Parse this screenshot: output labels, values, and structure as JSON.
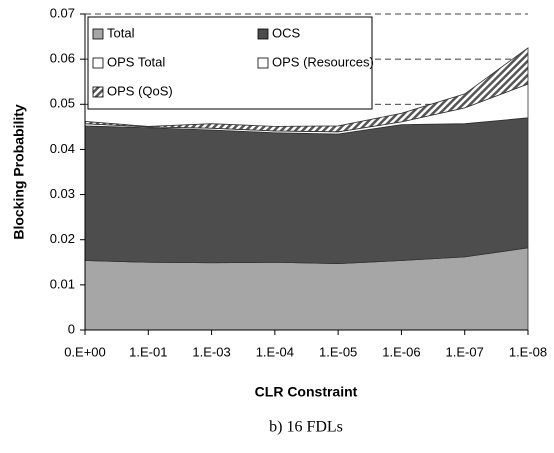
{
  "chart_data": {
    "type": "stacked_area",
    "y_label": "Blocking Probability",
    "x_label": "CLR Constraint",
    "caption": "b) 16 FDLs",
    "categories": [
      "0.E+00",
      "1.E-01",
      "1.E-03",
      "1.E-04",
      "1.E-05",
      "1.E-06",
      "1.E-07",
      "1.E-08"
    ],
    "series": [
      {
        "name": "Total",
        "color": "#a6a6a6",
        "values": [
          0.0154,
          0.015,
          0.0149,
          0.015,
          0.0147,
          0.0154,
          0.0162,
          0.0182
        ]
      },
      {
        "name": "OCS",
        "color": "#4d4d4d",
        "values": [
          0.0298,
          0.0298,
          0.0294,
          0.0287,
          0.0287,
          0.0301,
          0.0295,
          0.0288
        ]
      },
      {
        "name": "OPS Total",
        "color": "#ffffff",
        "values": [
          0,
          0,
          0,
          0,
          0,
          0,
          0,
          0
        ]
      },
      {
        "name": "OPS (Resources)",
        "color": "#ffffff",
        "values": [
          0.0005,
          0.0002,
          0.0004,
          0.0004,
          0.0005,
          0.0006,
          0.0035,
          0.0075
        ]
      },
      {
        "name": "OPS (QoS)",
        "color": "#555555",
        "hatch": true,
        "values": [
          0.0005,
          0.0001,
          0.001,
          0.001,
          0.0013,
          0.0019,
          0.0031,
          0.008
        ]
      }
    ],
    "ylim": [
      0,
      0.07
    ],
    "yticks": [
      0,
      0.01,
      0.02,
      0.03,
      0.04,
      0.05,
      0.06,
      0.07
    ],
    "grid": true
  }
}
